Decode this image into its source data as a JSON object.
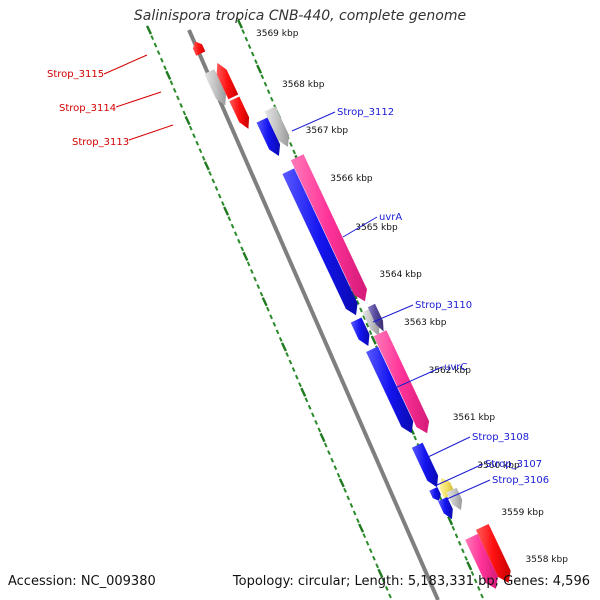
{
  "title": "Salinispora tropica CNB-440, complete genome",
  "footer": {
    "accession_label": "Accession: NC_009380",
    "topology": "Topology: circular",
    "length": "Length: 5,183,331 bp",
    "genes": "Genes: 4,596"
  },
  "colors": {
    "backbone": "#7f7f7f",
    "tick_dotted": "#2a8a2a",
    "tick_major": "#1f7a1f",
    "left_gene_label": "#d40000",
    "right_gene_label": "#1a1ad4",
    "kbp_label": "#111111",
    "red": "#f01010",
    "gray": "#bdbdbd",
    "blue": "#1515e8",
    "pink": "#ff3399",
    "purple": "#5a4a9a",
    "yellow": "#f2e060"
  },
  "kbp_ticks": [
    {
      "label": "3569 kbp"
    },
    {
      "label": "3568 kbp"
    },
    {
      "label": "3567 kbp"
    },
    {
      "label": "3566 kbp"
    },
    {
      "label": "3565 kbp"
    },
    {
      "label": "3564 kbp"
    },
    {
      "label": "3563 kbp"
    },
    {
      "label": "3562 kbp"
    },
    {
      "label": "3561 kbp"
    },
    {
      "label": "3560 kbp"
    },
    {
      "label": "3559 kbp"
    },
    {
      "label": "3558 kbp"
    }
  ],
  "gene_labels": [
    {
      "text": "Strop_3115",
      "side": "left"
    },
    {
      "text": "Strop_3114",
      "side": "left"
    },
    {
      "text": "Strop_3113",
      "side": "left"
    },
    {
      "text": "Strop_3112",
      "side": "right"
    },
    {
      "text": "uvrA",
      "side": "right"
    },
    {
      "text": "Strop_3110",
      "side": "right"
    },
    {
      "text": "uvrC",
      "side": "right"
    },
    {
      "text": "Strop_3108",
      "side": "right"
    },
    {
      "text": "Strop_3107",
      "side": "right"
    },
    {
      "text": "Strop_3106",
      "side": "right"
    }
  ]
}
